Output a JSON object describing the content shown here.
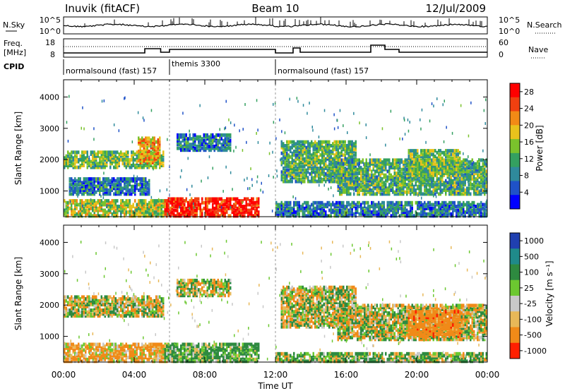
{
  "header": {
    "title": "Inuvik (fitACF)",
    "beam": "Beam 10",
    "date": "12/Jul/2009"
  },
  "top_panels": {
    "nsky_label": "N.Sky",
    "nsky_ticks": [
      "10^5",
      "10^0"
    ],
    "nsearch_ticks": [
      "10^5",
      "10^0"
    ],
    "nsearch_label": "N.Search",
    "freq_label_1": "Freq.",
    "freq_label_2": "[MHz]",
    "freq_ticks": [
      "18",
      "8"
    ],
    "nave_ticks": [
      "60",
      "0"
    ],
    "nave_label": "Nave",
    "cpid_label": "CPID",
    "cpid_segments": [
      {
        "label": "normalsound (fast) 157",
        "start_h": 0,
        "end_h": 6
      },
      {
        "label": "themis 3300",
        "start_h": 6,
        "end_h": 12
      },
      {
        "label": "normalsound (fast) 157",
        "start_h": 12,
        "end_h": 24
      }
    ]
  },
  "x_axis": {
    "label": "Time UT",
    "ticks": [
      "00:00",
      "04:00",
      "08:00",
      "12:00",
      "16:00",
      "20:00",
      "00:00"
    ],
    "range_h": [
      0,
      24
    ]
  },
  "power_panel": {
    "ylabel": "Slant Range [km]",
    "yticks": [
      "1000",
      "2000",
      "3000",
      "4000"
    ],
    "colorbar_label": "Power [dB]",
    "colorbar_ticks": [
      "28",
      "24",
      "20",
      "16",
      "12",
      "8",
      "4"
    ]
  },
  "velocity_panel": {
    "ylabel": "Slant Range [km]",
    "yticks": [
      "1000",
      "2000",
      "3000",
      "4000"
    ],
    "colorbar_label": "Velocity [m s⁻¹]",
    "colorbar_ticks": [
      "1000",
      "500",
      "100",
      "25",
      "-25",
      "-100",
      "-500",
      "-1000"
    ]
  },
  "chart_data": [
    {
      "type": "heatmap",
      "title": "Beam 10",
      "xlabel": "Time UT",
      "ylabel": "Slant Range [km]",
      "xlim_hours": [
        0,
        24
      ],
      "ylim_km": [
        180,
        4550
      ],
      "colorbar": {
        "label": "Power [dB]",
        "range": [
          0,
          30
        ],
        "ticks": [
          4,
          8,
          12,
          16,
          20,
          24,
          28
        ]
      },
      "colors": [
        "#0000ff",
        "#1f52c8",
        "#2f8a9c",
        "#34a060",
        "#7ac22c",
        "#e8c21c",
        "#f28a16",
        "#f04010",
        "#ff0000"
      ],
      "regions": [
        {
          "t0": 0,
          "t1": 5.6,
          "r0": 1750,
          "r1": 2250,
          "value": 14
        },
        {
          "t0": 0,
          "t1": 5.8,
          "r0": 200,
          "r1": 700,
          "value": 16
        },
        {
          "t0": 0.3,
          "t1": 4.8,
          "r0": 900,
          "r1": 1400,
          "value": 8
        },
        {
          "t0": 4.2,
          "t1": 5.4,
          "r0": 1900,
          "r1": 2700,
          "value": 20
        },
        {
          "t0": 5.7,
          "t1": 11,
          "r0": 200,
          "r1": 750,
          "value": 28
        },
        {
          "t0": 6.4,
          "t1": 9.4,
          "r0": 2300,
          "r1": 2800,
          "value": 8
        },
        {
          "t0": 12.0,
          "t1": 24,
          "r0": 200,
          "r1": 650,
          "value": 8
        },
        {
          "t0": 12.3,
          "t1": 16.5,
          "r0": 1300,
          "r1": 2600,
          "value": 12
        },
        {
          "t0": 15.5,
          "t1": 24,
          "r0": 900,
          "r1": 2000,
          "value": 12
        },
        {
          "t0": 19.5,
          "t1": 22.5,
          "r0": 1500,
          "r1": 2300,
          "value": 14
        }
      ]
    },
    {
      "type": "heatmap",
      "xlabel": "Time UT",
      "ylabel": "Slant Range [km]",
      "xlim_hours": [
        0,
        24
      ],
      "ylim_km": [
        180,
        4550
      ],
      "colorbar": {
        "label": "Velocity [m s⁻¹]",
        "levels": [
          1000,
          500,
          100,
          25,
          -25,
          -100,
          -500,
          -1000
        ]
      },
      "colors": [
        "#2040b0",
        "#1f8a8a",
        "#2e8a40",
        "#6cc830",
        "#c8c8c8",
        "#e8b858",
        "#f08a18",
        "#ff2000"
      ],
      "regions": [
        {
          "t0": 0,
          "t1": 5.6,
          "r0": 1650,
          "r1": 2300,
          "value": 0
        },
        {
          "t0": 0,
          "t1": 5.8,
          "r0": 200,
          "r1": 800,
          "value": -150
        },
        {
          "t0": 5.7,
          "t1": 11,
          "r0": 200,
          "r1": 800,
          "value": 150
        },
        {
          "t0": 6.4,
          "t1": 9.4,
          "r0": 2300,
          "r1": 2800,
          "value": 0
        },
        {
          "t0": 12.0,
          "t1": 24,
          "r0": 200,
          "r1": 500,
          "value": 100
        },
        {
          "t0": 12.3,
          "t1": 16.5,
          "r0": 1300,
          "r1": 2600,
          "value": 0
        },
        {
          "t0": 15.5,
          "t1": 24,
          "r0": 900,
          "r1": 2000,
          "value": 0
        },
        {
          "t0": 19.5,
          "t1": 22.5,
          "r0": 1000,
          "r1": 1800,
          "value": -300
        }
      ]
    }
  ]
}
